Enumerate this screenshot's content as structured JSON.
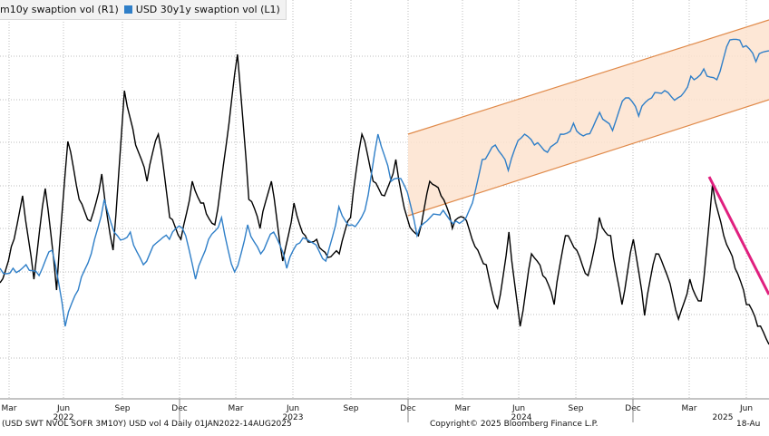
{
  "legend": {
    "series1_label": "m10y swaption vol (R1)",
    "series2_label": "USD 30y1y swaption vol (L1)"
  },
  "footer": {
    "left": "(USD SWT NVOL SOFR 3M10Y) USD vol 4  Daily 01JAN2022-14AUG2025",
    "middle": "Copyright© 2025 Bloomberg Finance L.P.",
    "right": "18-Au"
  },
  "colors": {
    "series_black": "#000000",
    "series_blue": "#2f7fc8",
    "channel_fill": "#fde3cf",
    "channel_edge": "#e08a4a",
    "trend_line": "#e0207f",
    "grid": "#bdbdbd"
  },
  "chart_data": {
    "type": "line",
    "x_start": "2022-02",
    "x_end": "2025-08",
    "grid": true,
    "legend_position": "top-left",
    "tick_labels": [
      "Mar",
      "Jun",
      "Sep",
      "Dec",
      "Mar",
      "Jun",
      "Sep",
      "Dec",
      "Mar",
      "Jun",
      "Sep",
      "Dec",
      "Mar",
      "Jun"
    ],
    "year_labels": [
      "2022",
      "2023",
      "2024",
      "2025"
    ],
    "series": [
      {
        "name": "m10y swaption vol (R1)",
        "color": "#000000",
        "values": [
          0.32,
          0.42,
          0.56,
          0.33,
          0.58,
          0.3,
          0.71,
          0.55,
          0.49,
          0.62,
          0.41,
          0.85,
          0.7,
          0.6,
          0.73,
          0.5,
          0.44,
          0.6,
          0.54,
          0.48,
          0.7,
          0.95,
          0.55,
          0.47,
          0.6,
          0.38,
          0.54,
          0.45,
          0.44,
          0.39,
          0.4,
          0.5,
          0.73,
          0.6,
          0.56,
          0.66,
          0.5,
          0.45,
          0.6,
          0.56,
          0.47,
          0.5,
          0.42,
          0.37,
          0.25,
          0.46,
          0.2,
          0.4,
          0.34,
          0.26,
          0.45,
          0.41,
          0.34,
          0.5,
          0.45,
          0.26,
          0.44,
          0.23,
          0.4,
          0.34,
          0.22,
          0.33,
          0.27,
          0.59,
          0.45,
          0.36,
          0.26,
          0.2,
          0.15
        ]
      },
      {
        "name": "USD 30y1y swaption vol (L1)",
        "color": "#2f7fc8",
        "values": [
          0.36,
          0.36,
          0.37,
          0.34,
          0.41,
          0.2,
          0.3,
          0.4,
          0.55,
          0.45,
          0.46,
          0.37,
          0.43,
          0.44,
          0.47,
          0.33,
          0.44,
          0.5,
          0.35,
          0.48,
          0.4,
          0.46,
          0.36,
          0.43,
          0.43,
          0.38,
          0.53,
          0.48,
          0.52,
          0.73,
          0.6,
          0.59,
          0.45,
          0.5,
          0.52,
          0.49,
          0.52,
          0.66,
          0.7,
          0.63,
          0.72,
          0.7,
          0.68,
          0.73,
          0.76,
          0.73,
          0.79,
          0.74,
          0.83,
          0.78,
          0.83,
          0.85,
          0.83,
          0.89,
          0.91,
          0.88,
          0.99,
          0.97,
          0.93,
          0.96
        ]
      }
    ],
    "channel_label": "",
    "annotations": [
      "upward channel around blue series",
      "downward trend line on black series"
    ]
  }
}
